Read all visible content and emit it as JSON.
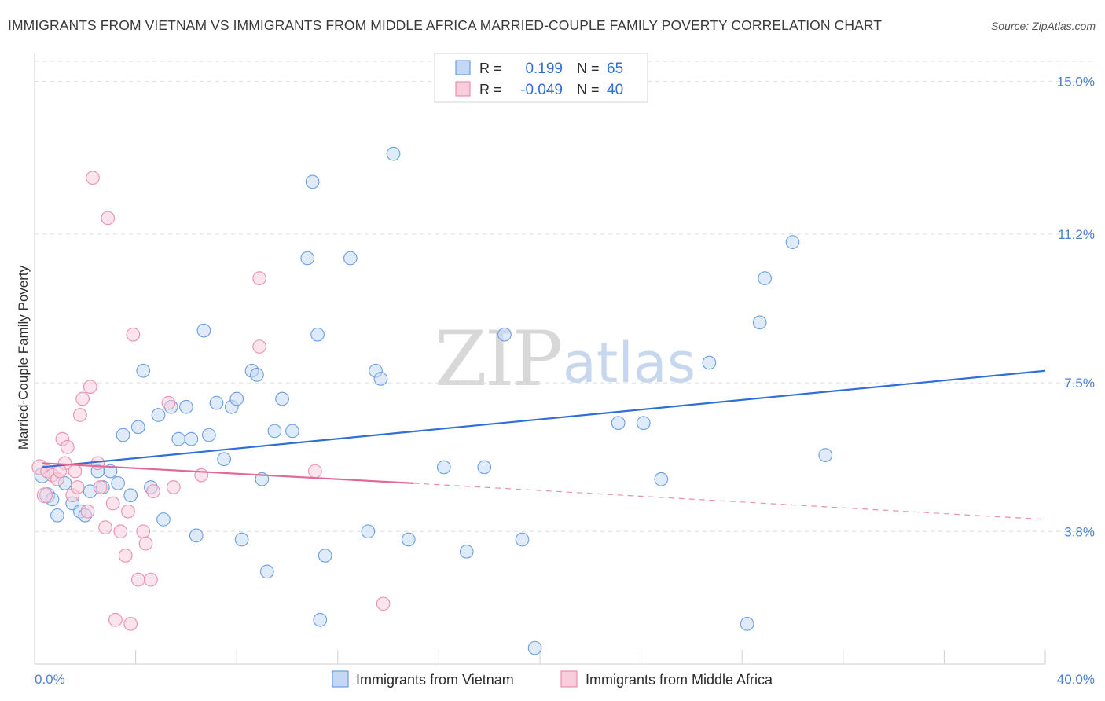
{
  "header": {
    "title": "IMMIGRANTS FROM VIETNAM VS IMMIGRANTS FROM MIDDLE AFRICA MARRIED-COUPLE FAMILY POVERTY CORRELATION CHART",
    "source": "Source: ZipAtlas.com"
  },
  "watermark": {
    "zip": "ZIP",
    "atlas": "atlas"
  },
  "legend": {
    "r_label": "R =",
    "n_label": "N =",
    "rows": [
      {
        "r": "0.199",
        "n": "65",
        "color": "#6a9ee0"
      },
      {
        "r": "-0.049",
        "n": "40",
        "color": "#ea8fae"
      }
    ]
  },
  "bottom_legend": [
    {
      "label": "Immigrants from Vietnam",
      "color": "#6a9ee0"
    },
    {
      "label": "Immigrants from Middle Africa",
      "color": "#ea8fae"
    }
  ],
  "chart_data": {
    "type": "scatter",
    "title": "IMMIGRANTS FROM VIETNAM VS IMMIGRANTS FROM MIDDLE AFRICA MARRIED-COUPLE FAMILY POVERTY CORRELATION CHART",
    "xlabel": "",
    "ylabel": "Married-Couple Family Poverty",
    "xlim": [
      0,
      40
    ],
    "ylim": [
      0.5,
      15.5
    ],
    "x_tick_labels": [
      "0.0%",
      "40.0%"
    ],
    "y_ticks": [
      3.8,
      7.5,
      11.2,
      15.0
    ],
    "y_tick_labels": [
      "3.8%",
      "7.5%",
      "11.2%",
      "15.0%"
    ],
    "grid": "horizontal dashed",
    "series": [
      {
        "name": "Immigrants from Vietnam",
        "color": "#6a9ee0",
        "trend": {
          "x": [
            0.3,
            40
          ],
          "y": [
            5.4,
            7.8
          ],
          "style": "solid"
        },
        "points": [
          [
            0.3,
            5.2
          ],
          [
            0.5,
            4.7
          ],
          [
            0.7,
            4.6
          ],
          [
            0.9,
            4.2
          ],
          [
            1.2,
            5.0
          ],
          [
            1.5,
            4.5
          ],
          [
            1.8,
            4.3
          ],
          [
            2.0,
            4.2
          ],
          [
            2.2,
            4.8
          ],
          [
            2.5,
            5.3
          ],
          [
            2.7,
            4.9
          ],
          [
            3.0,
            5.3
          ],
          [
            3.3,
            5.0
          ],
          [
            3.5,
            6.2
          ],
          [
            3.8,
            4.7
          ],
          [
            4.1,
            6.4
          ],
          [
            4.3,
            7.8
          ],
          [
            4.6,
            4.9
          ],
          [
            4.9,
            6.7
          ],
          [
            5.1,
            4.1
          ],
          [
            5.4,
            6.9
          ],
          [
            5.7,
            6.1
          ],
          [
            6.0,
            6.9
          ],
          [
            6.2,
            6.1
          ],
          [
            6.4,
            3.7
          ],
          [
            6.7,
            8.8
          ],
          [
            6.9,
            6.2
          ],
          [
            7.2,
            7.0
          ],
          [
            7.5,
            5.6
          ],
          [
            7.8,
            6.9
          ],
          [
            8.0,
            7.1
          ],
          [
            8.2,
            3.6
          ],
          [
            8.6,
            7.8
          ],
          [
            8.8,
            7.7
          ],
          [
            9.0,
            5.1
          ],
          [
            9.2,
            2.8
          ],
          [
            9.5,
            6.3
          ],
          [
            9.8,
            7.1
          ],
          [
            10.2,
            6.3
          ],
          [
            10.8,
            10.6
          ],
          [
            11.0,
            12.5
          ],
          [
            11.2,
            8.7
          ],
          [
            11.3,
            1.6
          ],
          [
            11.5,
            3.2
          ],
          [
            12.5,
            10.6
          ],
          [
            13.2,
            3.8
          ],
          [
            13.5,
            7.8
          ],
          [
            13.7,
            7.6
          ],
          [
            14.2,
            13.2
          ],
          [
            14.8,
            3.6
          ],
          [
            16.2,
            5.4
          ],
          [
            17.1,
            3.3
          ],
          [
            17.8,
            5.4
          ],
          [
            18.6,
            8.7
          ],
          [
            19.3,
            3.6
          ],
          [
            19.8,
            0.9
          ],
          [
            23.1,
            6.5
          ],
          [
            24.1,
            6.5
          ],
          [
            24.8,
            5.1
          ],
          [
            26.7,
            8.0
          ],
          [
            28.2,
            1.5
          ],
          [
            28.7,
            9.0
          ],
          [
            28.9,
            10.1
          ],
          [
            30.0,
            11.0
          ],
          [
            31.3,
            5.7
          ]
        ]
      },
      {
        "name": "Immigrants from Middle Africa",
        "color": "#ea8fae",
        "trend": {
          "x": [
            0.3,
            15.0
          ],
          "y": [
            5.5,
            5.0
          ],
          "style": "solid"
        },
        "trend_extension": {
          "x": [
            15.0,
            40
          ],
          "y": [
            5.0,
            4.1
          ],
          "style": "dashed"
        },
        "points": [
          [
            0.2,
            5.4
          ],
          [
            0.4,
            4.7
          ],
          [
            0.5,
            5.3
          ],
          [
            0.7,
            5.2
          ],
          [
            0.9,
            5.1
          ],
          [
            1.1,
            6.1
          ],
          [
            1.2,
            5.5
          ],
          [
            1.3,
            5.9
          ],
          [
            1.5,
            4.7
          ],
          [
            1.7,
            4.9
          ],
          [
            1.8,
            6.7
          ],
          [
            1.9,
            7.1
          ],
          [
            2.1,
            4.3
          ],
          [
            2.2,
            7.4
          ],
          [
            2.3,
            12.6
          ],
          [
            2.5,
            5.5
          ],
          [
            2.6,
            4.9
          ],
          [
            2.8,
            3.9
          ],
          [
            2.9,
            11.6
          ],
          [
            3.1,
            4.5
          ],
          [
            3.2,
            1.6
          ],
          [
            3.4,
            3.8
          ],
          [
            3.6,
            3.2
          ],
          [
            3.7,
            4.3
          ],
          [
            3.8,
            1.5
          ],
          [
            3.9,
            8.7
          ],
          [
            4.1,
            2.6
          ],
          [
            4.3,
            3.8
          ],
          [
            4.4,
            3.5
          ],
          [
            4.6,
            2.6
          ],
          [
            4.7,
            4.8
          ],
          [
            5.3,
            7.0
          ],
          [
            5.5,
            4.9
          ],
          [
            6.6,
            5.2
          ],
          [
            8.9,
            10.1
          ],
          [
            8.9,
            8.4
          ],
          [
            11.1,
            5.3
          ],
          [
            13.8,
            2.0
          ],
          [
            1.0,
            5.3
          ],
          [
            1.6,
            5.3
          ]
        ]
      }
    ]
  }
}
